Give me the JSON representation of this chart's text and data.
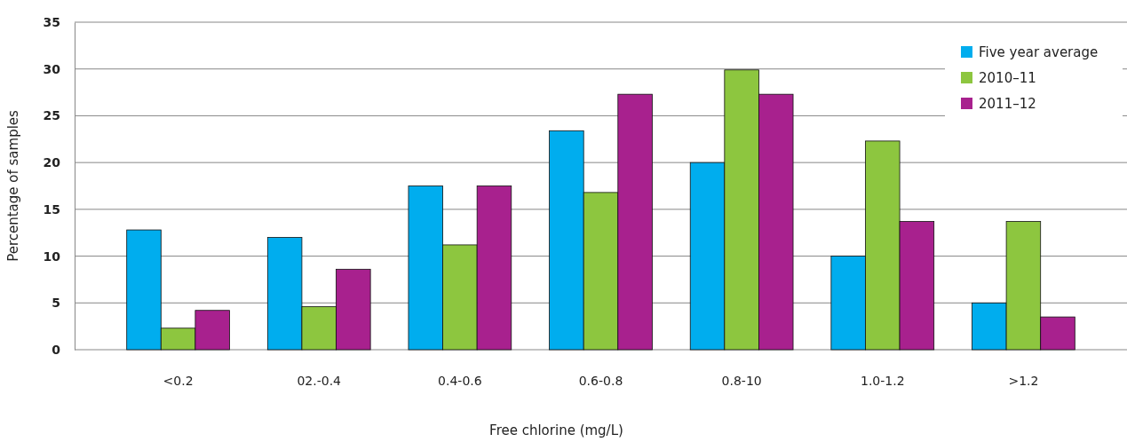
{
  "chart_data": {
    "type": "bar",
    "xlabel": "Free chlorine (mg/L)",
    "ylabel": "Percentage of samples",
    "categories": [
      "<0.2",
      "02.-0.4",
      "0.4-0.6",
      "0.6-0.8",
      "0.8-10",
      "1.0-1.2",
      ">1.2"
    ],
    "series": [
      {
        "name": "Five year average",
        "color": "#00adee",
        "values": [
          12.8,
          12.0,
          17.5,
          23.4,
          20.0,
          10.0,
          5.0
        ]
      },
      {
        "name": "2010–11",
        "color": "#8dc63f",
        "values": [
          2.3,
          4.6,
          11.2,
          16.8,
          29.9,
          22.3,
          13.7
        ]
      },
      {
        "name": "2011–12",
        "color": "#a8218e",
        "values": [
          4.2,
          8.6,
          17.5,
          27.3,
          27.3,
          13.7,
          3.5
        ]
      }
    ],
    "ylim": [
      0,
      35
    ],
    "yticks": [
      0,
      5,
      10,
      15,
      20,
      25,
      30,
      35
    ],
    "grid": "y",
    "legend": "top right"
  }
}
